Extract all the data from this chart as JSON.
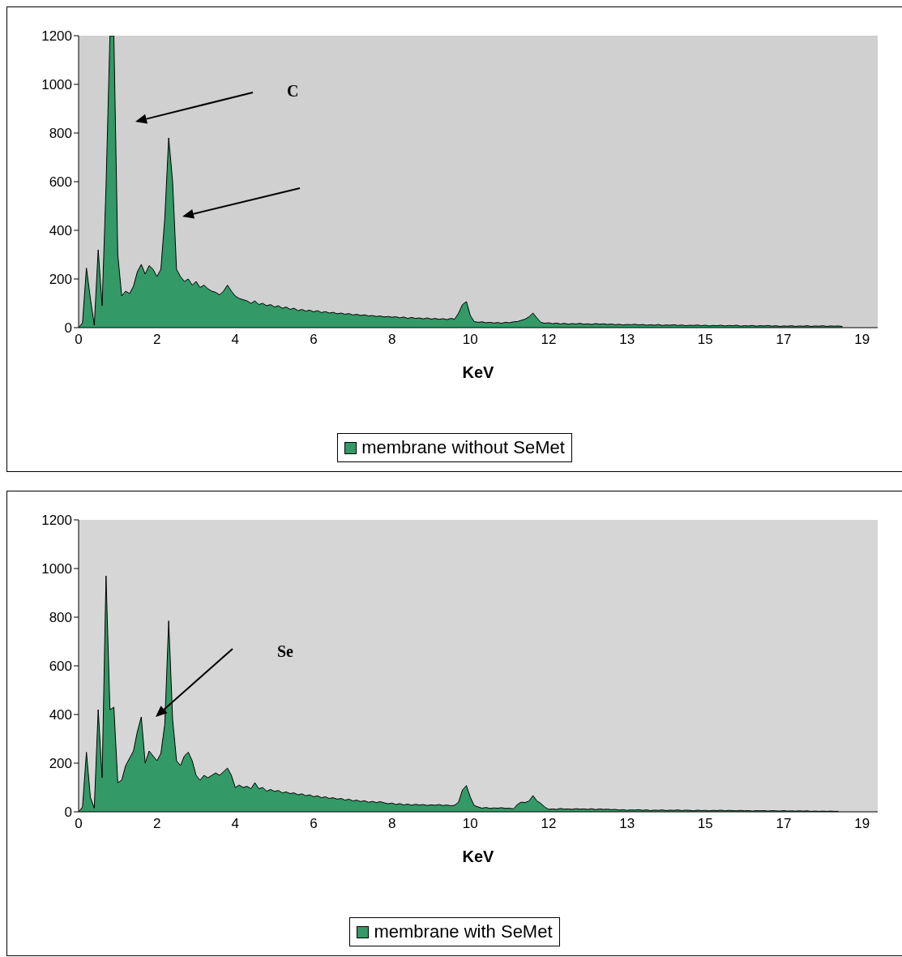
{
  "chart_data": [
    {
      "type": "area",
      "xlabel": "KeV",
      "ylim": [
        0,
        1200
      ],
      "yticks": [
        0,
        200,
        400,
        600,
        800,
        1000,
        1200
      ],
      "grid": false,
      "legend": "bottom",
      "annotations": [
        "C"
      ],
      "categories": [
        "0",
        null,
        null,
        null,
        null,
        null,
        null,
        null,
        null,
        null,
        null,
        null,
        null,
        null,
        null,
        null,
        null,
        null,
        null,
        null,
        "2",
        null,
        null,
        null,
        null,
        null,
        null,
        null,
        null,
        null,
        null,
        null,
        null,
        null,
        null,
        null,
        null,
        null,
        null,
        null,
        "4",
        null,
        null,
        null,
        null,
        null,
        null,
        null,
        null,
        null,
        null,
        null,
        null,
        null,
        null,
        null,
        null,
        null,
        null,
        null,
        "6",
        null,
        null,
        null,
        null,
        null,
        null,
        null,
        null,
        null,
        null,
        null,
        null,
        null,
        null,
        null,
        null,
        null,
        null,
        null,
        "8",
        null,
        null,
        null,
        null,
        null,
        null,
        null,
        null,
        null,
        null,
        null,
        null,
        null,
        null,
        null,
        null,
        null,
        null,
        null,
        "10",
        null,
        null,
        null,
        null,
        null,
        null,
        null,
        null,
        null,
        null,
        null,
        null,
        null,
        null,
        null,
        null,
        null,
        null,
        null,
        "12",
        null,
        null,
        null,
        null,
        null,
        null,
        null,
        null,
        null,
        null,
        null,
        null,
        null,
        null,
        null,
        null,
        null,
        null,
        null,
        "13",
        null,
        null,
        null,
        null,
        null,
        null,
        null,
        null,
        null,
        null,
        null,
        null,
        null,
        null,
        null,
        null,
        null,
        null,
        null,
        "15",
        null,
        null,
        null,
        null,
        null,
        null,
        null,
        null,
        null,
        null,
        null,
        null,
        null,
        null,
        null,
        null,
        null,
        null,
        null,
        "17",
        null,
        null,
        null,
        null,
        null,
        null,
        null,
        null,
        null,
        null,
        null,
        null,
        null,
        null,
        null,
        null,
        null,
        null,
        null,
        "19",
        null,
        null,
        null,
        null
      ],
      "series": [
        {
          "name": "membrane without SeMet",
          "color": "#339966",
          "values": [
            0,
            20,
            245,
            120,
            10,
            320,
            90,
            580,
            1200,
            1200,
            300,
            130,
            150,
            140,
            170,
            230,
            260,
            220,
            255,
            240,
            210,
            240,
            450,
            780,
            600,
            240,
            210,
            190,
            200,
            175,
            190,
            165,
            175,
            160,
            150,
            145,
            135,
            150,
            175,
            150,
            130,
            120,
            115,
            110,
            100,
            110,
            95,
            100,
            90,
            95,
            85,
            90,
            80,
            85,
            75,
            80,
            70,
            75,
            68,
            72,
            65,
            70,
            62,
            66,
            60,
            63,
            57,
            60,
            55,
            58,
            52,
            55,
            50,
            53,
            48,
            50,
            46,
            48,
            44,
            46,
            43,
            45,
            40,
            44,
            38,
            42,
            38,
            40,
            36,
            40,
            35,
            38,
            34,
            37,
            33,
            38,
            35,
            60,
            95,
            107,
            50,
            25,
            22,
            24,
            20,
            22,
            19,
            21,
            18,
            22,
            20,
            24,
            25,
            30,
            35,
            45,
            60,
            40,
            22,
            18,
            20,
            16,
            19,
            15,
            18,
            14,
            17,
            15,
            18,
            14,
            16,
            13,
            17,
            14,
            16,
            13,
            15,
            12,
            14,
            11,
            13,
            12,
            14,
            11,
            13,
            10,
            12,
            10,
            13,
            9,
            11,
            10,
            12,
            9,
            11,
            8,
            10,
            9,
            11,
            8,
            10,
            7,
            9,
            8,
            10,
            7,
            9,
            8,
            10,
            6,
            8,
            7,
            9,
            6,
            8,
            7,
            9,
            6,
            8,
            5,
            7,
            6,
            8,
            5,
            7,
            6,
            8,
            5,
            7,
            6,
            8,
            5,
            7,
            6,
            7,
            5,
            null,
            null,
            null,
            null,
            null,
            null,
            null,
            null,
            null
          ]
        }
      ]
    },
    {
      "type": "area",
      "xlabel": "KeV",
      "ylim": [
        0,
        1200
      ],
      "yticks": [
        0,
        200,
        400,
        600,
        800,
        1000,
        1200
      ],
      "grid": false,
      "legend": "bottom",
      "annotations": [
        "Se"
      ],
      "categories": [
        "0",
        null,
        null,
        null,
        null,
        null,
        null,
        null,
        null,
        null,
        null,
        null,
        null,
        null,
        null,
        null,
        null,
        null,
        null,
        null,
        "2",
        null,
        null,
        null,
        null,
        null,
        null,
        null,
        null,
        null,
        null,
        null,
        null,
        null,
        null,
        null,
        null,
        null,
        null,
        null,
        "4",
        null,
        null,
        null,
        null,
        null,
        null,
        null,
        null,
        null,
        null,
        null,
        null,
        null,
        null,
        null,
        null,
        null,
        null,
        null,
        "6",
        null,
        null,
        null,
        null,
        null,
        null,
        null,
        null,
        null,
        null,
        null,
        null,
        null,
        null,
        null,
        null,
        null,
        null,
        null,
        "8",
        null,
        null,
        null,
        null,
        null,
        null,
        null,
        null,
        null,
        null,
        null,
        null,
        null,
        null,
        null,
        null,
        null,
        null,
        null,
        "10",
        null,
        null,
        null,
        null,
        null,
        null,
        null,
        null,
        null,
        null,
        null,
        null,
        null,
        null,
        null,
        null,
        null,
        null,
        null,
        "12",
        null,
        null,
        null,
        null,
        null,
        null,
        null,
        null,
        null,
        null,
        null,
        null,
        null,
        null,
        null,
        null,
        null,
        null,
        null,
        "13",
        null,
        null,
        null,
        null,
        null,
        null,
        null,
        null,
        null,
        null,
        null,
        null,
        null,
        null,
        null,
        null,
        null,
        null,
        null,
        "15",
        null,
        null,
        null,
        null,
        null,
        null,
        null,
        null,
        null,
        null,
        null,
        null,
        null,
        null,
        null,
        null,
        null,
        null,
        null,
        "17",
        null,
        null,
        null,
        null,
        null,
        null,
        null,
        null,
        null,
        null,
        null,
        null,
        null,
        null,
        null,
        null,
        null,
        null,
        null,
        "19",
        null,
        null,
        null,
        null
      ],
      "series": [
        {
          "name": "membrane with SeMet",
          "color": "#339966",
          "values": [
            0,
            20,
            245,
            60,
            15,
            420,
            140,
            970,
            420,
            430,
            120,
            130,
            190,
            220,
            250,
            330,
            390,
            200,
            250,
            230,
            210,
            240,
            360,
            785,
            380,
            210,
            190,
            230,
            245,
            210,
            150,
            130,
            150,
            140,
            150,
            160,
            150,
            165,
            180,
            150,
            100,
            110,
            100,
            105,
            95,
            120,
            95,
            100,
            85,
            92,
            84,
            88,
            78,
            82,
            75,
            78,
            70,
            74,
            66,
            70,
            62,
            66,
            58,
            62,
            55,
            58,
            52,
            55,
            48,
            52,
            45,
            48,
            42,
            46,
            39,
            43,
            38,
            42,
            37,
            33,
            36,
            30,
            34,
            28,
            32,
            27,
            31,
            28,
            30,
            26,
            29,
            27,
            30,
            26,
            28,
            25,
            27,
            40,
            90,
            108,
            60,
            26,
            20,
            15,
            18,
            14,
            16,
            15,
            17,
            14,
            15,
            12,
            30,
            40,
            38,
            45,
            67,
            45,
            35,
            20,
            10,
            12,
            10,
            14,
            11,
            12,
            10,
            13,
            11,
            12,
            10,
            13,
            9,
            12,
            10,
            11,
            9,
            10,
            7,
            9,
            6,
            8,
            7,
            9,
            6,
            8,
            5,
            7,
            6,
            8,
            5,
            7,
            6,
            8,
            5,
            7,
            6,
            4,
            7,
            5,
            6,
            4,
            6,
            5,
            7,
            4,
            6,
            5,
            4,
            6,
            4,
            5,
            3,
            5,
            4,
            5,
            3,
            5,
            4,
            3,
            5,
            3,
            4,
            3,
            4,
            3,
            4,
            2,
            3,
            2,
            3,
            2,
            3,
            2,
            2,
            null,
            null,
            null,
            null,
            null,
            null,
            null,
            null,
            null,
            null
          ]
        }
      ]
    }
  ]
}
